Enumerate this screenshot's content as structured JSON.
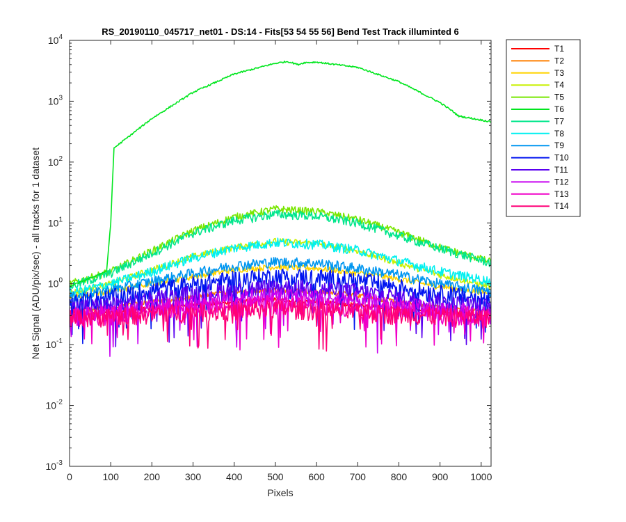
{
  "chart_data": {
    "type": "line",
    "title": "RS_20190110_045717_net01 - DS:14 - Fits[53  54  55  56]   Bend Test        Track illuminted 6",
    "xlabel": "Pixels",
    "ylabel": "Net Signal (ADU/pix/sec) - all tracks for 1 dataset",
    "xlim": [
      0,
      1024
    ],
    "ylim": [
      0.001,
      10000
    ],
    "y_scale": "log",
    "grid": false,
    "legend_position": "outside-top-right",
    "x_ticks": [
      0,
      100,
      200,
      300,
      400,
      500,
      600,
      700,
      800,
      900,
      1000
    ],
    "y_ticks": [
      {
        "value": 0.001,
        "base": "10",
        "exp": "-3"
      },
      {
        "value": 0.01,
        "base": "10",
        "exp": "-2"
      },
      {
        "value": 0.1,
        "base": "10",
        "exp": "-1"
      },
      {
        "value": 1,
        "base": "10",
        "exp": "0"
      },
      {
        "value": 10,
        "base": "10",
        "exp": "1"
      },
      {
        "value": 100,
        "base": "10",
        "exp": "2"
      },
      {
        "value": 1000,
        "base": "10",
        "exp": "3"
      },
      {
        "value": 10000,
        "base": "10",
        "exp": "4"
      }
    ],
    "series": [
      {
        "name": "T1",
        "color": "#ff0000",
        "x": [
          0,
          100,
          200,
          300,
          400,
          500,
          600,
          700,
          800,
          900,
          1024
        ],
        "y": [
          0.3,
          0.35,
          0.4,
          0.45,
          0.5,
          0.55,
          0.5,
          0.45,
          0.4,
          0.35,
          0.3
        ]
      },
      {
        "name": "T2",
        "color": "#ff7f00",
        "x": [
          0,
          100,
          200,
          300,
          400,
          500,
          600,
          700,
          800,
          900,
          1024
        ],
        "y": [
          0.35,
          0.4,
          0.5,
          0.6,
          0.75,
          0.8,
          0.75,
          0.65,
          0.5,
          0.42,
          0.35
        ]
      },
      {
        "name": "T3",
        "color": "#ffd400",
        "x": [
          0,
          100,
          200,
          300,
          400,
          500,
          600,
          700,
          800,
          900,
          1024
        ],
        "y": [
          0.6,
          0.75,
          1.0,
          1.3,
          1.7,
          1.9,
          1.8,
          1.5,
          1.2,
          0.9,
          0.7
        ]
      },
      {
        "name": "T4",
        "color": "#c8f000",
        "x": [
          0,
          100,
          200,
          300,
          400,
          500,
          600,
          700,
          800,
          900,
          1024
        ],
        "y": [
          0.7,
          1.0,
          1.7,
          2.8,
          4.0,
          5.0,
          4.6,
          3.5,
          2.2,
          1.4,
          0.9
        ]
      },
      {
        "name": "T5",
        "color": "#78e600",
        "x": [
          0,
          100,
          200,
          300,
          400,
          500,
          600,
          700,
          800,
          900,
          1024
        ],
        "y": [
          1.0,
          1.6,
          3.5,
          7.5,
          12.5,
          17.0,
          15.5,
          11.5,
          7.0,
          4.0,
          2.3
        ]
      },
      {
        "name": "T6",
        "color": "#00e61e",
        "x": [
          0,
          45,
          90,
          100,
          108,
          200,
          300,
          400,
          500,
          530,
          555,
          570,
          600,
          700,
          800,
          900,
          930,
          945,
          1024
        ],
        "y": [
          0.9,
          1.2,
          1.6,
          10,
          170,
          520,
          1400,
          2800,
          4200,
          4500,
          4000,
          4300,
          4400,
          3600,
          2100,
          950,
          690,
          570,
          460
        ]
      },
      {
        "name": "T7",
        "color": "#00e68c",
        "x": [
          0,
          100,
          200,
          300,
          400,
          500,
          600,
          700,
          800,
          900,
          1024
        ],
        "y": [
          0.9,
          1.5,
          3.2,
          6.8,
          11.0,
          14.0,
          13.0,
          10.0,
          6.2,
          3.8,
          2.2
        ]
      },
      {
        "name": "T8",
        "color": "#00f0f0",
        "x": [
          0,
          100,
          200,
          300,
          400,
          500,
          600,
          700,
          800,
          900,
          1024
        ],
        "y": [
          0.7,
          1.0,
          1.6,
          2.7,
          3.9,
          4.8,
          4.5,
          3.6,
          2.4,
          1.6,
          1.1
        ]
      },
      {
        "name": "T9",
        "color": "#0096f0",
        "x": [
          0,
          100,
          200,
          300,
          400,
          500,
          600,
          700,
          800,
          900,
          1024
        ],
        "y": [
          0.6,
          0.8,
          1.1,
          1.5,
          2.0,
          2.3,
          2.2,
          1.8,
          1.4,
          1.0,
          0.75
        ]
      },
      {
        "name": "T10",
        "color": "#0014f0",
        "x": [
          0,
          100,
          200,
          300,
          400,
          500,
          600,
          700,
          800,
          900,
          1024
        ],
        "y": [
          0.5,
          0.6,
          0.8,
          1.0,
          1.2,
          1.35,
          1.3,
          1.15,
          0.9,
          0.7,
          0.55
        ]
      },
      {
        "name": "T11",
        "color": "#5a00f0",
        "x": [
          0,
          100,
          200,
          300,
          400,
          500,
          600,
          700,
          800,
          900,
          1024
        ],
        "y": [
          0.4,
          0.45,
          0.55,
          0.7,
          0.8,
          0.9,
          0.85,
          0.75,
          0.6,
          0.5,
          0.42
        ]
      },
      {
        "name": "T12",
        "color": "#c800f0",
        "x": [
          0,
          100,
          200,
          300,
          400,
          500,
          600,
          700,
          800,
          900,
          1024
        ],
        "y": [
          0.3,
          0.35,
          0.42,
          0.5,
          0.6,
          0.65,
          0.62,
          0.55,
          0.45,
          0.38,
          0.32
        ]
      },
      {
        "name": "T13",
        "color": "#f000c8",
        "x": [
          0,
          100,
          200,
          300,
          400,
          500,
          600,
          700,
          800,
          900,
          1024
        ],
        "y": [
          0.3,
          0.32,
          0.38,
          0.42,
          0.45,
          0.48,
          0.46,
          0.42,
          0.38,
          0.33,
          0.3
        ]
      },
      {
        "name": "T14",
        "color": "#ff0078",
        "x": [
          0,
          100,
          200,
          300,
          400,
          500,
          600,
          700,
          800,
          900,
          1024
        ],
        "y": [
          0.28,
          0.3,
          0.33,
          0.35,
          0.37,
          0.4,
          0.38,
          0.35,
          0.32,
          0.3,
          0.28
        ]
      }
    ]
  }
}
